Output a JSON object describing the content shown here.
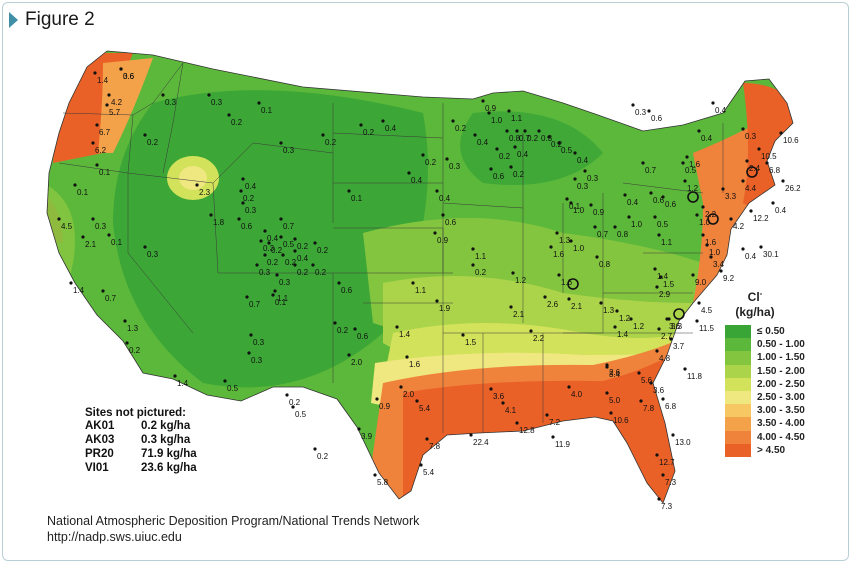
{
  "figure": {
    "title": "Figure 2"
  },
  "legend": {
    "title_main": "Cl",
    "title_sup": "-",
    "title_unit": "(kg/ha)",
    "classes": [
      {
        "label": "≤ 0.50",
        "color": "#3aa537"
      },
      {
        "label": "0.50 - 1.00",
        "color": "#5cb83a"
      },
      {
        "label": "1.00 - 1.50",
        "color": "#84c540"
      },
      {
        "label": "1.50 - 2.00",
        "color": "#acd44a"
      },
      {
        "label": "2.00 - 2.50",
        "color": "#d2e25a"
      },
      {
        "label": "2.50 - 3.00",
        "color": "#efe77f"
      },
      {
        "label": "3.00 - 3.50",
        "color": "#f6c763"
      },
      {
        "label": "3.50 - 4.00",
        "color": "#f4a24a"
      },
      {
        "label": "4.00 - 4.50",
        "color": "#f0833c"
      },
      {
        "label": "> 4.50",
        "color": "#ea6128"
      }
    ]
  },
  "sites_not_pictured": {
    "heading": "Sites not pictured:",
    "rows": [
      {
        "site": "AK01",
        "value": "0.2 kg/ha"
      },
      {
        "site": "AK03",
        "value": "0.3 kg/ha"
      },
      {
        "site": "PR20",
        "value": "71.9 kg/ha"
      },
      {
        "site": "VI01",
        "value": "23.6 kg/ha"
      }
    ]
  },
  "credit": {
    "line1": "National Atmospheric Deposition Program/National Trends Network",
    "line2": "http://nadp.sws.uiuc.edu"
  },
  "site_values": [
    "3.6",
    "1.4",
    "4.2",
    "5.7",
    "6.7",
    "6.2",
    "0.3",
    "0.2",
    "0.1",
    "0.3",
    "0.1",
    "0.2",
    "2.3",
    "1.8",
    "0.6",
    "4.5",
    "0.3",
    "2.1",
    "0.1",
    "0.3",
    "1.4",
    "0.7",
    "1.3",
    "0.2",
    "0.1",
    "0.3",
    "0.4",
    "0.2",
    "0.3",
    "0.7",
    "0.4",
    "0.5",
    "0.3",
    "0.2",
    "0.2",
    "0.4",
    "1.1",
    "0.1",
    "0.3",
    "0.2",
    "0.2",
    "0.2",
    "0.3",
    "0.7",
    "0.2",
    "0.5",
    "0.3",
    "0.3",
    "1.4",
    "0.5",
    "0.2",
    "0.2",
    "0.1",
    "0.2",
    "0.4",
    "0.4",
    "0.4",
    "0.2",
    "0.3",
    "0.2",
    "0.4",
    "0.2",
    "0.4",
    "0.6",
    "0.2",
    "0.6",
    "0.9",
    "1.1",
    "1.1",
    "1.2",
    "1.9",
    "1.4",
    "1.5",
    "1.6",
    "2.0",
    "2.1",
    "2.2",
    "2.6",
    "1.6",
    "1.3",
    "1.0",
    "1.6",
    "0.8",
    "1.0",
    "0.9",
    "0.7",
    "0.8",
    "1.1",
    "1.4",
    "1.5",
    "2.1",
    "1.3",
    "1.0",
    "0.5",
    "0.6",
    "0.4",
    "0.7",
    "0.5",
    "1.2",
    "1.6",
    "0.6",
    "1.0",
    "1.6",
    "1.0",
    "2.2",
    "9.0",
    "0.4",
    "2.4",
    "3.3",
    "6.8",
    "4.4",
    "10.5",
    "10.6",
    "26.2",
    "12.2",
    "4.2",
    "30.1",
    "3.4",
    "9.2",
    "3.6",
    "1.2",
    "2.9",
    "1.4",
    "2.7",
    "1.2",
    "3.3",
    "3.7",
    "11.5",
    "4.5",
    "3.6",
    "3.4",
    "5.4",
    "5.4",
    "3.6",
    "4.1",
    "4.0",
    "2.6",
    "4.8",
    "11.8",
    "5.6",
    "5.0",
    "7.8",
    "6.8",
    "13.0",
    "12.7",
    "7.3",
    "7.3",
    "10.6",
    "7.2",
    "11.9",
    "22.4",
    "12.8",
    "7.8",
    "5.8",
    "3.9",
    "0.9",
    "2.0",
    "0.6",
    "0.2",
    "0.2",
    "0.6",
    "0.2",
    "0.9",
    "1.1",
    "1.0",
    "0.8",
    "0.7",
    "0.2",
    "0.3",
    "0.2",
    "0.5",
    "0.4",
    "0.3",
    "0.3",
    "0.1",
    "0.2",
    "0.3",
    "0.6",
    "0.4",
    "0.3",
    "0.4",
    "0.4",
    "0.6"
  ]
}
